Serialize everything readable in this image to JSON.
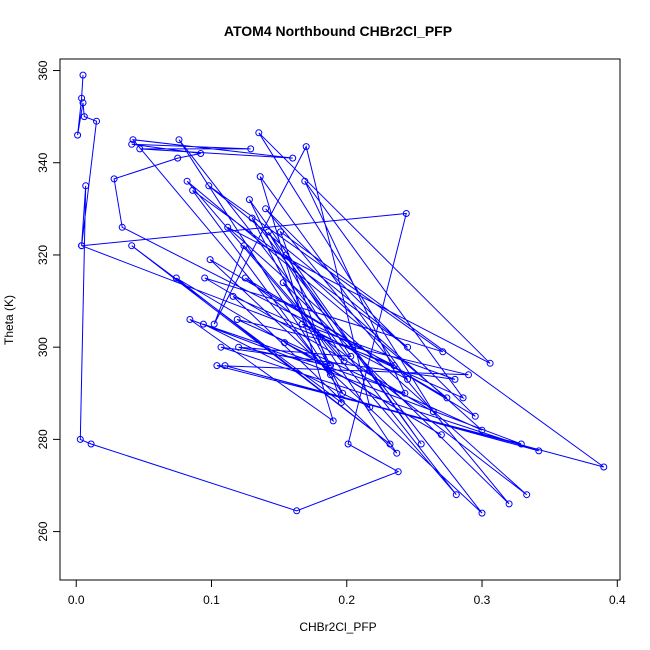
{
  "chart_data": {
    "type": "line",
    "title": "ATOM4 Northbound CHBr2Cl_PFP",
    "xlabel": "CHBr2Cl_PFP",
    "ylabel": "Theta (K)",
    "xlim": [
      -0.012,
      0.402
    ],
    "ylim": [
      249.5,
      362.5
    ],
    "x_ticks": [
      0.0,
      0.1,
      0.2,
      0.3,
      0.4
    ],
    "x_tick_labels": [
      "0.0",
      "0.1",
      "0.2",
      "0.3",
      "0.4"
    ],
    "y_ticks": [
      260,
      280,
      300,
      320,
      340,
      360
    ],
    "y_tick_labels": [
      "260",
      "280",
      "300",
      "320",
      "340",
      "360"
    ],
    "grid": false,
    "legend": "none",
    "line_color": "#0000ff",
    "marker": "open-circle",
    "series": [
      {
        "x": [
          0.005,
          0.004,
          0.001,
          0.005,
          0.006,
          0.015,
          0.004,
          0.007,
          0.003,
          0.011,
          0.163,
          0.238,
          0.201,
          0.244,
          0.004,
          0.235,
          0.034,
          0.028,
          0.075,
          0.092,
          0.041,
          0.129,
          0.047,
          0.16,
          0.042,
          0.188,
          0.076,
          0.281,
          0.082,
          0.274,
          0.099,
          0.3,
          0.13,
          0.197,
          0.086,
          0.245,
          0.098,
          0.271,
          0.095,
          0.264,
          0.135,
          0.306,
          0.112,
          0.333,
          0.125,
          0.295,
          0.14,
          0.32,
          0.153,
          0.237,
          0.116,
          0.286,
          0.169,
          0.243,
          0.094,
          0.217,
          0.17,
          0.102,
          0.124,
          0.198,
          0.142,
          0.255,
          0.128,
          0.188,
          0.12,
          0.203,
          0.155,
          0.3,
          0.119,
          0.29,
          0.104,
          0.329,
          0.084,
          0.19,
          0.136,
          0.245,
          0.167,
          0.28,
          0.107,
          0.342,
          0.11,
          0.39,
          0.151,
          0.196,
          0.041,
          0.232,
          0.074,
          0.27,
          0.154,
          0.187
        ],
        "y": [
          359.0,
          354.0,
          346.0,
          353.0,
          350.0,
          349.0,
          322.0,
          335.0,
          280.0,
          279.0,
          264.5,
          273.0,
          279.0,
          329.0,
          322.0,
          296.0,
          326.0,
          336.5,
          341.0,
          342.0,
          344.0,
          343.0,
          343.0,
          341.0,
          345.0,
          294.0,
          345.0,
          268.0,
          336.0,
          289.0,
          319.0,
          264.0,
          328.0,
          290.0,
          334.0,
          300.0,
          335.0,
          299.0,
          315.0,
          286.0,
          346.5,
          296.5,
          326.0,
          268.0,
          315.0,
          285.0,
          330.0,
          266.0,
          314.0,
          277.0,
          311.0,
          289.0,
          336.0,
          290.0,
          305.0,
          287.0,
          343.5,
          305.0,
          322.0,
          297.0,
          325.0,
          279.0,
          332.0,
          296.0,
          300.0,
          298.0,
          320.0,
          282.0,
          306.0,
          294.0,
          296.0,
          279.0,
          306.0,
          284.0,
          337.0,
          293.0,
          305.0,
          293.0,
          300.0,
          277.5,
          296.0,
          274.0,
          325.0,
          288.0,
          322.0,
          279.0,
          315.0,
          281.0,
          301.0,
          296.0
        ]
      }
    ]
  }
}
